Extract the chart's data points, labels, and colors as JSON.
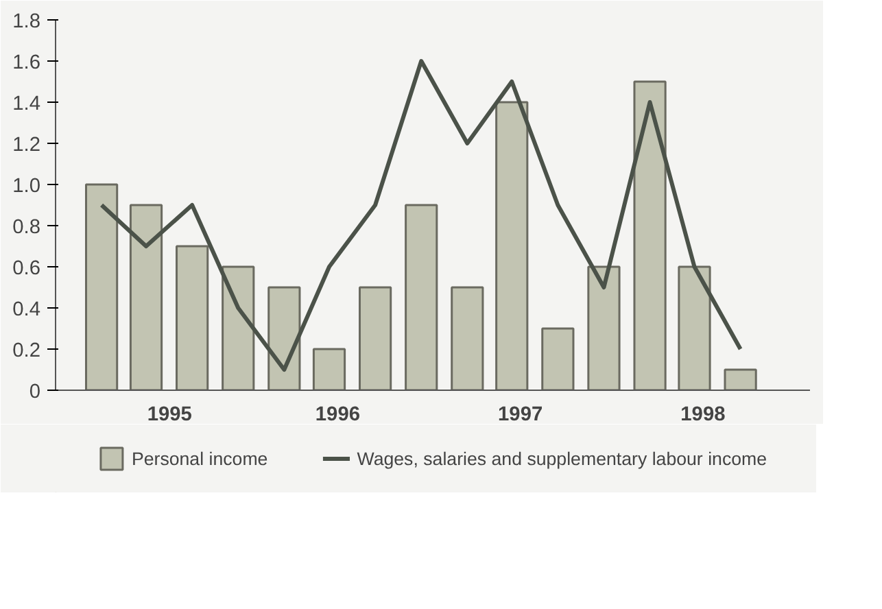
{
  "chart_data": {
    "type": "bar",
    "x": [
      "1995-02-15",
      "1995-05-15",
      "1995-08-15",
      "1995-11-15",
      "1996-02-15",
      "1996-05-15",
      "1996-08-15",
      "1996-11-15",
      "1997-02-15",
      "1997-05-15",
      "1997-08-15",
      "1997-11-15",
      "1998-02-15",
      "1998-05-15",
      "1998-08-15"
    ],
    "series": [
      {
        "name": "Personal income",
        "color": "#c2c4b2",
        "values": [
          1.0,
          0.9,
          0.7,
          0.6,
          0.5,
          0.2,
          0.5,
          0.9,
          0.5,
          1.4,
          0.3,
          0.6,
          1.5,
          0.6,
          0.1
        ]
      },
      {
        "name": "Wages, salaries and supplementary labour income",
        "type": "line",
        "color": "#4b5249",
        "values": [
          0.9,
          0.7,
          0.9,
          0.4,
          0.1,
          0.6,
          0.9,
          1.6,
          1.2,
          1.5,
          0.9,
          0.5,
          1.4,
          0.6,
          0.2
        ]
      }
    ],
    "xlim": [
      "1994-11-15",
      "1999-01-01"
    ],
    "xticks": [
      {
        "value": "1995-07-01",
        "label": "1995"
      },
      {
        "value": "1996-06-01",
        "label": "1996"
      },
      {
        "value": "1997-06-01",
        "label": "1997"
      },
      {
        "value": "1998-06-01",
        "label": "1998"
      }
    ],
    "ylim": [
      0,
      1.8
    ],
    "yticks": [
      0,
      {
        "value": 0.2,
        "label": "0.2"
      },
      {
        "value": 0.4,
        "label": "0.4"
      },
      {
        "value": 0.6,
        "label": "0.6"
      },
      {
        "value": 0.8,
        "label": "0.8"
      },
      {
        "value": 1.0,
        "label": "1.0"
      },
      {
        "value": 1.2,
        "label": "1.2"
      },
      {
        "value": 1.4,
        "label": "1.4"
      },
      {
        "value": 1.6,
        "label": "1.6"
      },
      {
        "value": 1.8,
        "label": "1.8"
      }
    ],
    "legend": "bottom"
  }
}
